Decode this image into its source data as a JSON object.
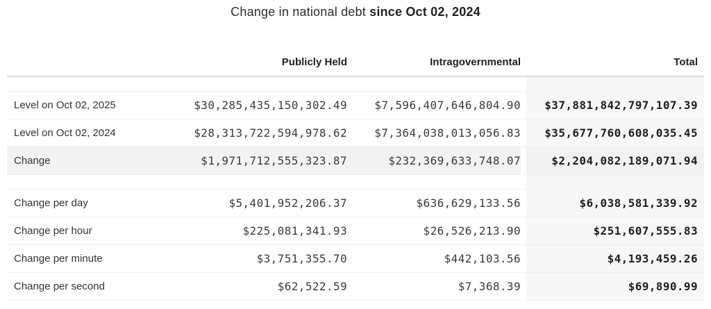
{
  "title": {
    "prefix": "Change in national debt ",
    "bold_part": "since Oct 02, 2024"
  },
  "colors": {
    "total_column_bg": "#f7f7f7",
    "highlight_row_bg": "#f2f2f2",
    "row_border": "#ededed",
    "header_border": "#dcdcdc",
    "text": "#333333"
  },
  "table": {
    "columns": {
      "label": "",
      "publicly_held": "Publicly Held",
      "intragovernmental": "Intragovernmental",
      "total": "Total"
    },
    "rows": [
      {
        "label": "Level on Oct 02, 2025",
        "publicly_held": "$30,285,435,150,302.49",
        "intragovernmental": "$7,596,407,646,804.90",
        "total": "$37,881,842,797,107.39"
      },
      {
        "label": "Level on Oct 02, 2024",
        "publicly_held": "$28,313,722,594,978.62",
        "intragovernmental": "$7,364,038,013,056.83",
        "total": "$35,677,760,608,035.45"
      },
      {
        "label": "Change",
        "publicly_held": "$1,971,712,555,323.87",
        "intragovernmental": "$232,369,633,748.07",
        "total": "$2,204,082,189,071.94"
      },
      {
        "label": "Change per day",
        "publicly_held": "$5,401,952,206.37",
        "intragovernmental": "$636,629,133.56",
        "total": "$6,038,581,339.92"
      },
      {
        "label": "Change per hour",
        "publicly_held": "$225,081,341.93",
        "intragovernmental": "$26,526,213.90",
        "total": "$251,607,555.83"
      },
      {
        "label": "Change per minute",
        "publicly_held": "$3,751,355.70",
        "intragovernmental": "$442,103.56",
        "total": "$4,193,459.26"
      },
      {
        "label": "Change per second",
        "publicly_held": "$62,522.59",
        "intragovernmental": "$7,368.39",
        "total": "$69,890.99"
      }
    ]
  }
}
